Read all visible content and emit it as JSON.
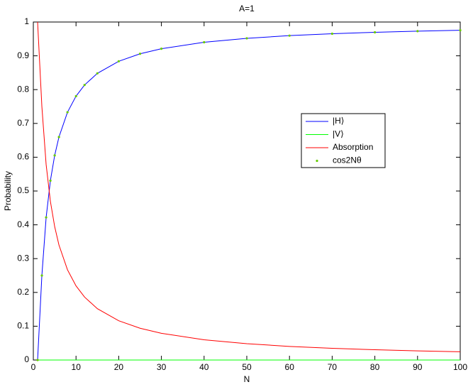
{
  "chart_data": {
    "type": "line",
    "title": "A=1",
    "x_label": "N",
    "y_label": "Probability",
    "x": [
      1,
      2,
      3,
      4,
      5,
      6,
      8,
      10,
      12,
      15,
      20,
      25,
      30,
      40,
      50,
      60,
      70,
      80,
      90,
      100
    ],
    "series": [
      {
        "name": "|H⟩",
        "color": "#0000ff",
        "style": "line",
        "values": [
          0,
          0.25,
          0.4219,
          0.5308,
          0.6054,
          0.6597,
          0.7331,
          0.7806,
          0.8137,
          0.8481,
          0.8838,
          0.906,
          0.921,
          0.9402,
          0.9518,
          0.9597,
          0.9654,
          0.9696,
          0.973,
          0.9756
        ]
      },
      {
        "name": "|V⟩",
        "color": "#00ff00",
        "style": "line",
        "values": [
          0,
          0,
          0,
          0,
          0,
          0,
          0,
          0,
          0,
          0,
          0,
          0,
          0,
          0,
          0,
          0,
          0,
          0,
          0,
          0
        ]
      },
      {
        "name": "Absorption",
        "color": "#ff0000",
        "style": "line",
        "values": [
          1,
          0.75,
          0.5781,
          0.4692,
          0.3946,
          0.3403,
          0.2669,
          0.2194,
          0.1863,
          0.1519,
          0.1162,
          0.094,
          0.079,
          0.0598,
          0.0482,
          0.0403,
          0.0346,
          0.0304,
          0.027,
          0.0244
        ]
      },
      {
        "name": "cos2Nθ",
        "color": "#66cc00",
        "style": "dots",
        "values": [
          0,
          0.25,
          0.4219,
          0.5308,
          0.6054,
          0.6597,
          0.7331,
          0.7806,
          0.8137,
          0.8481,
          0.8838,
          0.906,
          0.921,
          0.9402,
          0.9518,
          0.9597,
          0.9654,
          0.9696,
          0.973,
          0.9756
        ]
      }
    ],
    "xlim": [
      0,
      100
    ],
    "xticks": [
      0,
      10,
      20,
      30,
      40,
      50,
      60,
      70,
      80,
      90,
      100
    ],
    "ylim": [
      0,
      1
    ],
    "yticks": [
      0,
      0.1,
      0.2,
      0.3,
      0.4,
      0.5,
      0.6,
      0.7,
      0.8,
      0.9,
      1
    ],
    "grid": false
  }
}
